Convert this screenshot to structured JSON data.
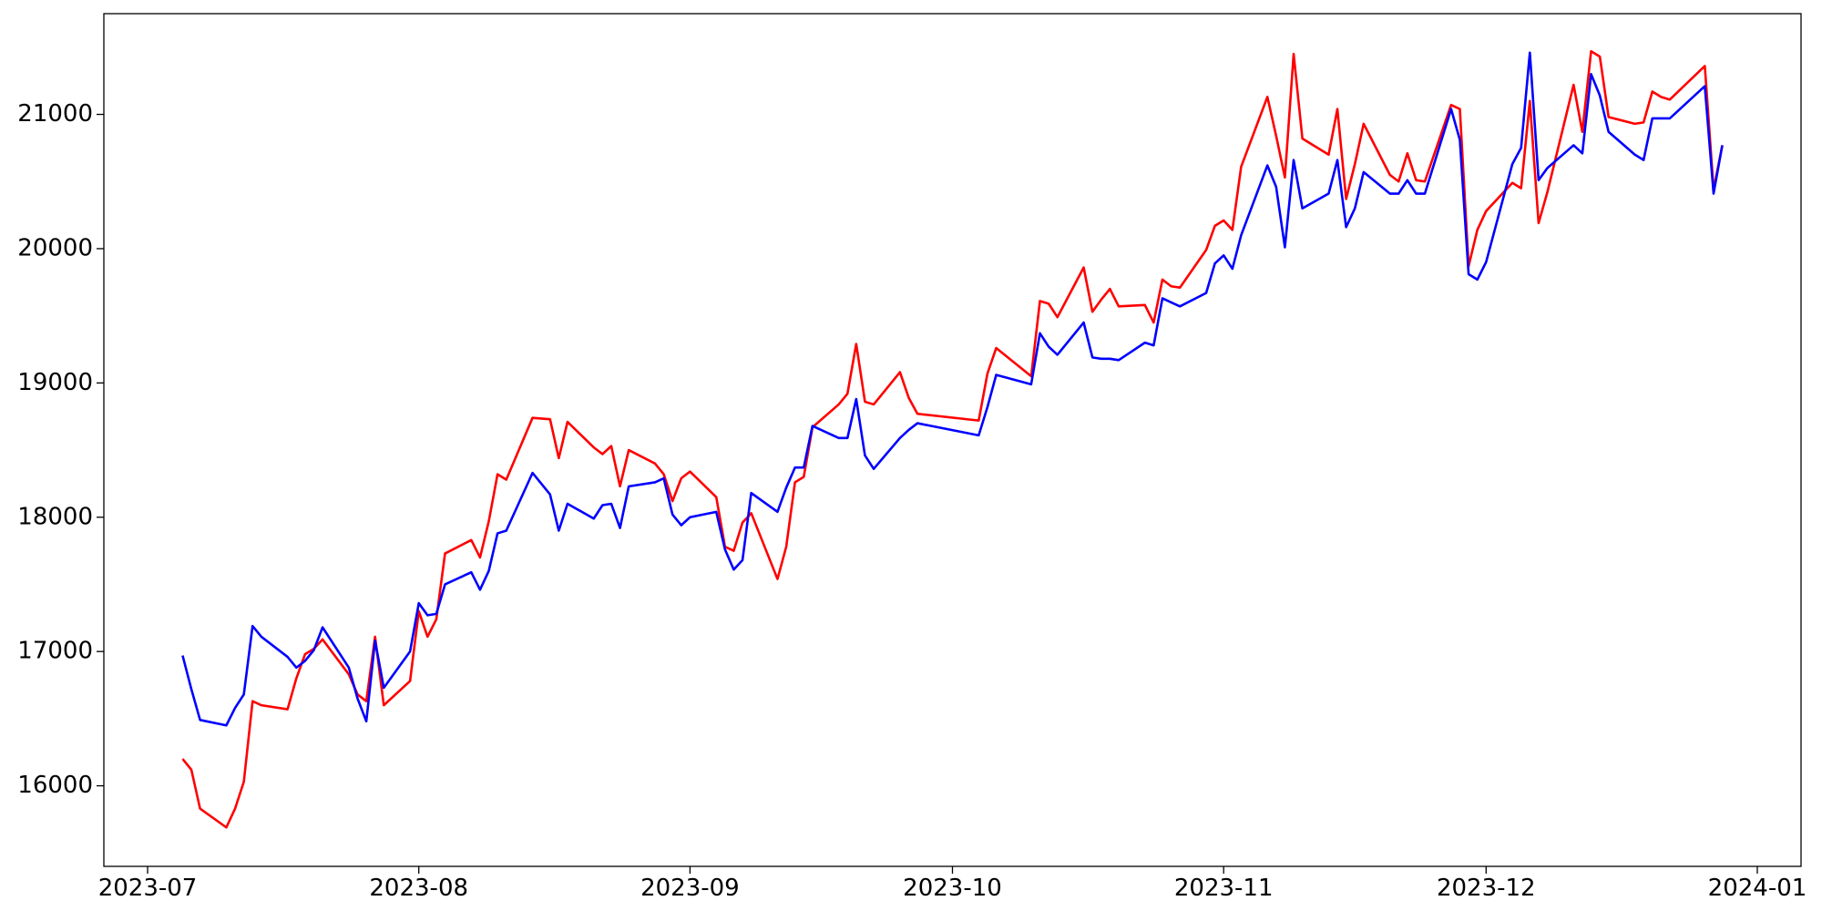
{
  "chart_data": {
    "type": "line",
    "x": [
      "2023-07-05",
      "2023-07-06",
      "2023-07-07",
      "2023-07-10",
      "2023-07-11",
      "2023-07-12",
      "2023-07-13",
      "2023-07-14",
      "2023-07-17",
      "2023-07-18",
      "2023-07-19",
      "2023-07-20",
      "2023-07-21",
      "2023-07-24",
      "2023-07-25",
      "2023-07-26",
      "2023-07-27",
      "2023-07-28",
      "2023-07-31",
      "2023-08-01",
      "2023-08-02",
      "2023-08-03",
      "2023-08-04",
      "2023-08-07",
      "2023-08-08",
      "2023-08-09",
      "2023-08-10",
      "2023-08-11",
      "2023-08-14",
      "2023-08-16",
      "2023-08-17",
      "2023-08-18",
      "2023-08-21",
      "2023-08-22",
      "2023-08-23",
      "2023-08-24",
      "2023-08-25",
      "2023-08-28",
      "2023-08-29",
      "2023-08-30",
      "2023-08-31",
      "2023-09-01",
      "2023-09-04",
      "2023-09-05",
      "2023-09-06",
      "2023-09-07",
      "2023-09-08",
      "2023-09-11",
      "2023-09-12",
      "2023-09-13",
      "2023-09-14",
      "2023-09-15",
      "2023-09-18",
      "2023-09-19",
      "2023-09-20",
      "2023-09-21",
      "2023-09-22",
      "2023-09-25",
      "2023-09-26",
      "2023-09-27",
      "2023-10-04",
      "2023-10-05",
      "2023-10-06",
      "2023-10-10",
      "2023-10-11",
      "2023-10-12",
      "2023-10-13",
      "2023-10-16",
      "2023-10-17",
      "2023-10-18",
      "2023-10-19",
      "2023-10-20",
      "2023-10-23",
      "2023-10-24",
      "2023-10-25",
      "2023-10-26",
      "2023-10-27",
      "2023-10-30",
      "2023-10-31",
      "2023-11-01",
      "2023-11-02",
      "2023-11-03",
      "2023-11-06",
      "2023-11-07",
      "2023-11-08",
      "2023-11-09",
      "2023-11-10",
      "2023-11-13",
      "2023-11-14",
      "2023-11-15",
      "2023-11-16",
      "2023-11-17",
      "2023-11-20",
      "2023-11-21",
      "2023-11-22",
      "2023-11-23",
      "2023-11-24",
      "2023-11-27",
      "2023-11-28",
      "2023-11-29",
      "2023-11-30",
      "2023-12-01",
      "2023-12-04",
      "2023-12-05",
      "2023-12-06",
      "2023-12-07",
      "2023-12-08",
      "2023-12-11",
      "2023-12-12",
      "2023-12-13",
      "2023-12-14",
      "2023-12-15",
      "2023-12-18",
      "2023-12-19",
      "2023-12-20",
      "2023-12-21",
      "2023-12-22",
      "2023-12-26",
      "2023-12-27",
      "2023-12-28"
    ],
    "series": [
      {
        "color": "#ff0000",
        "values": [
          16200,
          16120,
          15830,
          15690,
          15830,
          16030,
          16630,
          16600,
          16570,
          16800,
          16980,
          17020,
          17090,
          16830,
          16680,
          16630,
          17110,
          16600,
          16780,
          17300,
          17110,
          17240,
          17730,
          17830,
          17700,
          17970,
          18320,
          18280,
          18740,
          18730,
          18440,
          18710,
          18520,
          18470,
          18530,
          18230,
          18500,
          18400,
          18320,
          18120,
          18290,
          18340,
          18150,
          17780,
          17750,
          17960,
          18030,
          17540,
          17780,
          18260,
          18300,
          18670,
          18840,
          18920,
          19290,
          18860,
          18840,
          19080,
          18890,
          18770,
          18720,
          19070,
          19260,
          19050,
          19610,
          19590,
          19490,
          19860,
          19530,
          19620,
          19700,
          19570,
          19580,
          19450,
          19770,
          19720,
          19710,
          19990,
          20170,
          20210,
          20140,
          20610,
          21130,
          20840,
          20530,
          21450,
          20820,
          20700,
          21040,
          20370,
          20630,
          20930,
          20550,
          20500,
          20710,
          20510,
          20500,
          21070,
          21040,
          19870,
          20140,
          20280,
          20490,
          20450,
          21100,
          20190,
          20420,
          21220,
          20870,
          21470,
          21430,
          20980,
          20930,
          20940,
          21170,
          21130,
          21110,
          21360,
          20440,
          20770
        ]
      },
      {
        "color": "#0000ff",
        "values": [
          16970,
          16720,
          16490,
          16450,
          16580,
          16680,
          17190,
          17110,
          16960,
          16880,
          16930,
          17010,
          17180,
          16880,
          16650,
          16480,
          17080,
          16730,
          17000,
          17360,
          17270,
          17280,
          17500,
          17590,
          17460,
          17600,
          17880,
          17900,
          18330,
          18170,
          17900,
          18100,
          17990,
          18090,
          18100,
          17920,
          18230,
          18260,
          18290,
          18020,
          17940,
          18000,
          18040,
          17760,
          17610,
          17680,
          18180,
          18040,
          18220,
          18370,
          18370,
          18680,
          18590,
          18590,
          18880,
          18460,
          18360,
          18590,
          18650,
          18700,
          18610,
          18820,
          19060,
          18990,
          19370,
          19270,
          19210,
          19450,
          19190,
          19180,
          19180,
          19170,
          19300,
          19280,
          19630,
          19600,
          19570,
          19670,
          19890,
          19950,
          19850,
          20100,
          20620,
          20460,
          20010,
          20660,
          20300,
          20410,
          20660,
          20160,
          20300,
          20570,
          20410,
          20410,
          20510,
          20410,
          20410,
          21040,
          20810,
          19810,
          19770,
          19900,
          20630,
          20750,
          21460,
          20510,
          20600,
          20770,
          20710,
          21300,
          21140,
          20870,
          20700,
          20660,
          20970,
          20970,
          20970,
          21210,
          20410,
          20770
        ]
      }
    ],
    "xlim": [
      "2023-06-26",
      "2024-01-06"
    ],
    "xticks": [
      "2023-07",
      "2023-08",
      "2023-09",
      "2023-10",
      "2023-11",
      "2023-12",
      "2024-01"
    ],
    "ylim": [
      15400,
      21750
    ],
    "yticks": [
      16000,
      17000,
      18000,
      19000,
      20000,
      21000
    ],
    "grid": false
  }
}
